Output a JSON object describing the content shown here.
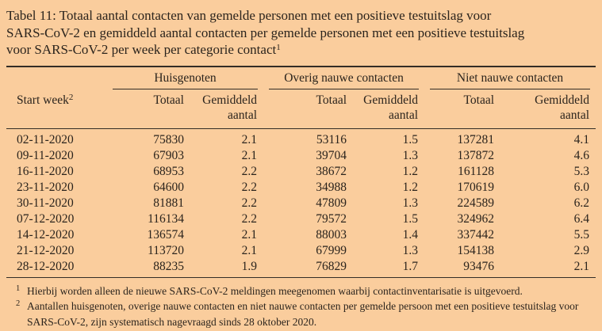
{
  "page": {
    "background_color": "#facd9d",
    "text_color": "#2b241d",
    "rule_color": "#332d26"
  },
  "title": {
    "lines": [
      "Tabel 11: Totaal aantal contacten van gemelde personen met een positieve testuitslag voor",
      "SARS-CoV-2 en gemiddeld aantal contacten per gemelde personen met een positieve testuitslag",
      "voor SARS-CoV-2 per week per categorie contact"
    ],
    "footnote_ref": "1"
  },
  "table": {
    "row_header": {
      "label": "Start week",
      "footnote_ref": "2"
    },
    "groups": [
      {
        "label": "Huisgenoten"
      },
      {
        "label": "Overig nauwe contacten"
      },
      {
        "label": "Niet nauwe contacten"
      }
    ],
    "subheaders": {
      "total": "Totaal",
      "average_line1": "Gemiddeld",
      "average_line2": "aantal"
    },
    "rows": [
      {
        "week": "02-11-2020",
        "values": [
          "75830",
          "2.1",
          "53116",
          "1.5",
          "137281",
          "4.1"
        ]
      },
      {
        "week": "09-11-2020",
        "values": [
          "67903",
          "2.1",
          "39704",
          "1.3",
          "137872",
          "4.6"
        ]
      },
      {
        "week": "16-11-2020",
        "values": [
          "68953",
          "2.2",
          "38672",
          "1.2",
          "161128",
          "5.3"
        ]
      },
      {
        "week": "23-11-2020",
        "values": [
          "64600",
          "2.2",
          "34988",
          "1.2",
          "170619",
          "6.0"
        ]
      },
      {
        "week": "30-11-2020",
        "values": [
          "81881",
          "2.2",
          "47809",
          "1.3",
          "224589",
          "6.2"
        ]
      },
      {
        "week": "07-12-2020",
        "values": [
          "116134",
          "2.2",
          "79572",
          "1.5",
          "324962",
          "6.4"
        ]
      },
      {
        "week": "14-12-2020",
        "values": [
          "136574",
          "2.1",
          "88003",
          "1.4",
          "337442",
          "5.5"
        ]
      },
      {
        "week": "21-12-2020",
        "values": [
          "113720",
          "2.1",
          "67999",
          "1.3",
          "154138",
          "2.9"
        ]
      },
      {
        "week": "28-12-2020",
        "values": [
          "88235",
          "1.9",
          "76829",
          "1.7",
          "93476",
          "2.1"
        ]
      }
    ]
  },
  "footnotes": [
    {
      "marker": "1",
      "text": "Hierbij worden alleen de nieuwe SARS-CoV-2 meldingen meegenomen waarbij contactinventarisatie is uitgevoerd."
    },
    {
      "marker": "2",
      "text": "Aantallen huisgenoten, overige nauwe contacten en niet nauwe contacten per gemelde persoon met een positieve testuitslag voor SARS-CoV-2, zijn systematisch nagevraagd sinds 28 oktober 2020."
    }
  ]
}
